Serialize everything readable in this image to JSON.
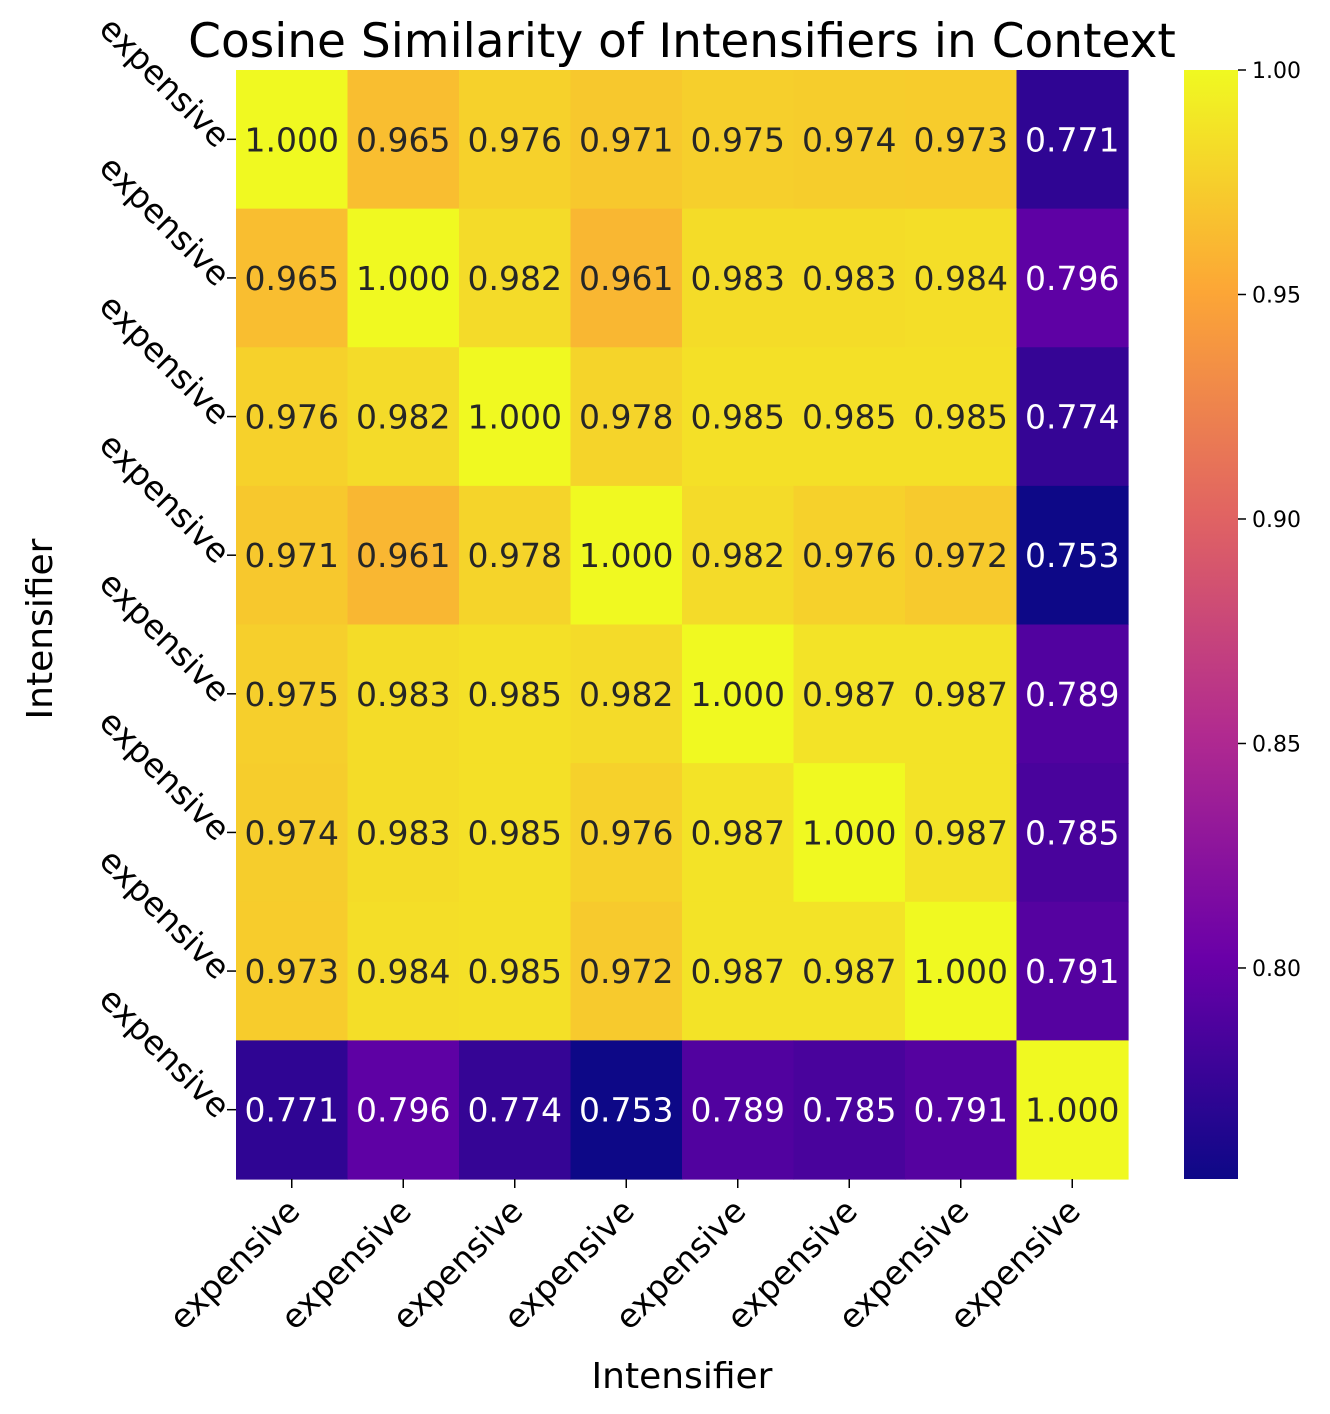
{
  "chart_data": {
    "type": "heatmap",
    "title": "Cosine Similarity of Intensifiers in Context",
    "xlabel": "Intensifier",
    "ylabel": "Intensifier",
    "x_categories": [
      "expensive",
      "expensive",
      "expensive",
      "expensive",
      "expensive",
      "expensive",
      "expensive",
      "expensive"
    ],
    "y_categories": [
      "expensive",
      "expensive",
      "expensive",
      "expensive",
      "expensive",
      "expensive",
      "expensive",
      "expensive"
    ],
    "values": [
      [
        1.0,
        0.965,
        0.976,
        0.971,
        0.975,
        0.974,
        0.973,
        0.771
      ],
      [
        0.965,
        1.0,
        0.982,
        0.961,
        0.983,
        0.983,
        0.984,
        0.796
      ],
      [
        0.976,
        0.982,
        1.0,
        0.978,
        0.985,
        0.985,
        0.985,
        0.774
      ],
      [
        0.971,
        0.961,
        0.978,
        1.0,
        0.982,
        0.976,
        0.972,
        0.753
      ],
      [
        0.975,
        0.983,
        0.985,
        0.982,
        1.0,
        0.987,
        0.987,
        0.789
      ],
      [
        0.974,
        0.983,
        0.985,
        0.976,
        0.987,
        1.0,
        0.987,
        0.785
      ],
      [
        0.973,
        0.984,
        0.985,
        0.972,
        0.987,
        0.987,
        1.0,
        0.791
      ],
      [
        0.771,
        0.796,
        0.774,
        0.753,
        0.789,
        0.785,
        0.791,
        1.0
      ]
    ],
    "value_format": "3 decimals",
    "colormap": "plasma",
    "colormap_stops": [
      "#0d0887",
      "#6a00a8",
      "#b12a90",
      "#e16462",
      "#fca636",
      "#f0f921"
    ],
    "color_range": [
      0.753,
      1.0
    ],
    "colorbar_ticks": [
      "0.80",
      "0.85",
      "0.90",
      "0.95",
      "1.00"
    ],
    "annotation_dark_color": "#262626",
    "annotation_light_color": "#ffffff"
  }
}
